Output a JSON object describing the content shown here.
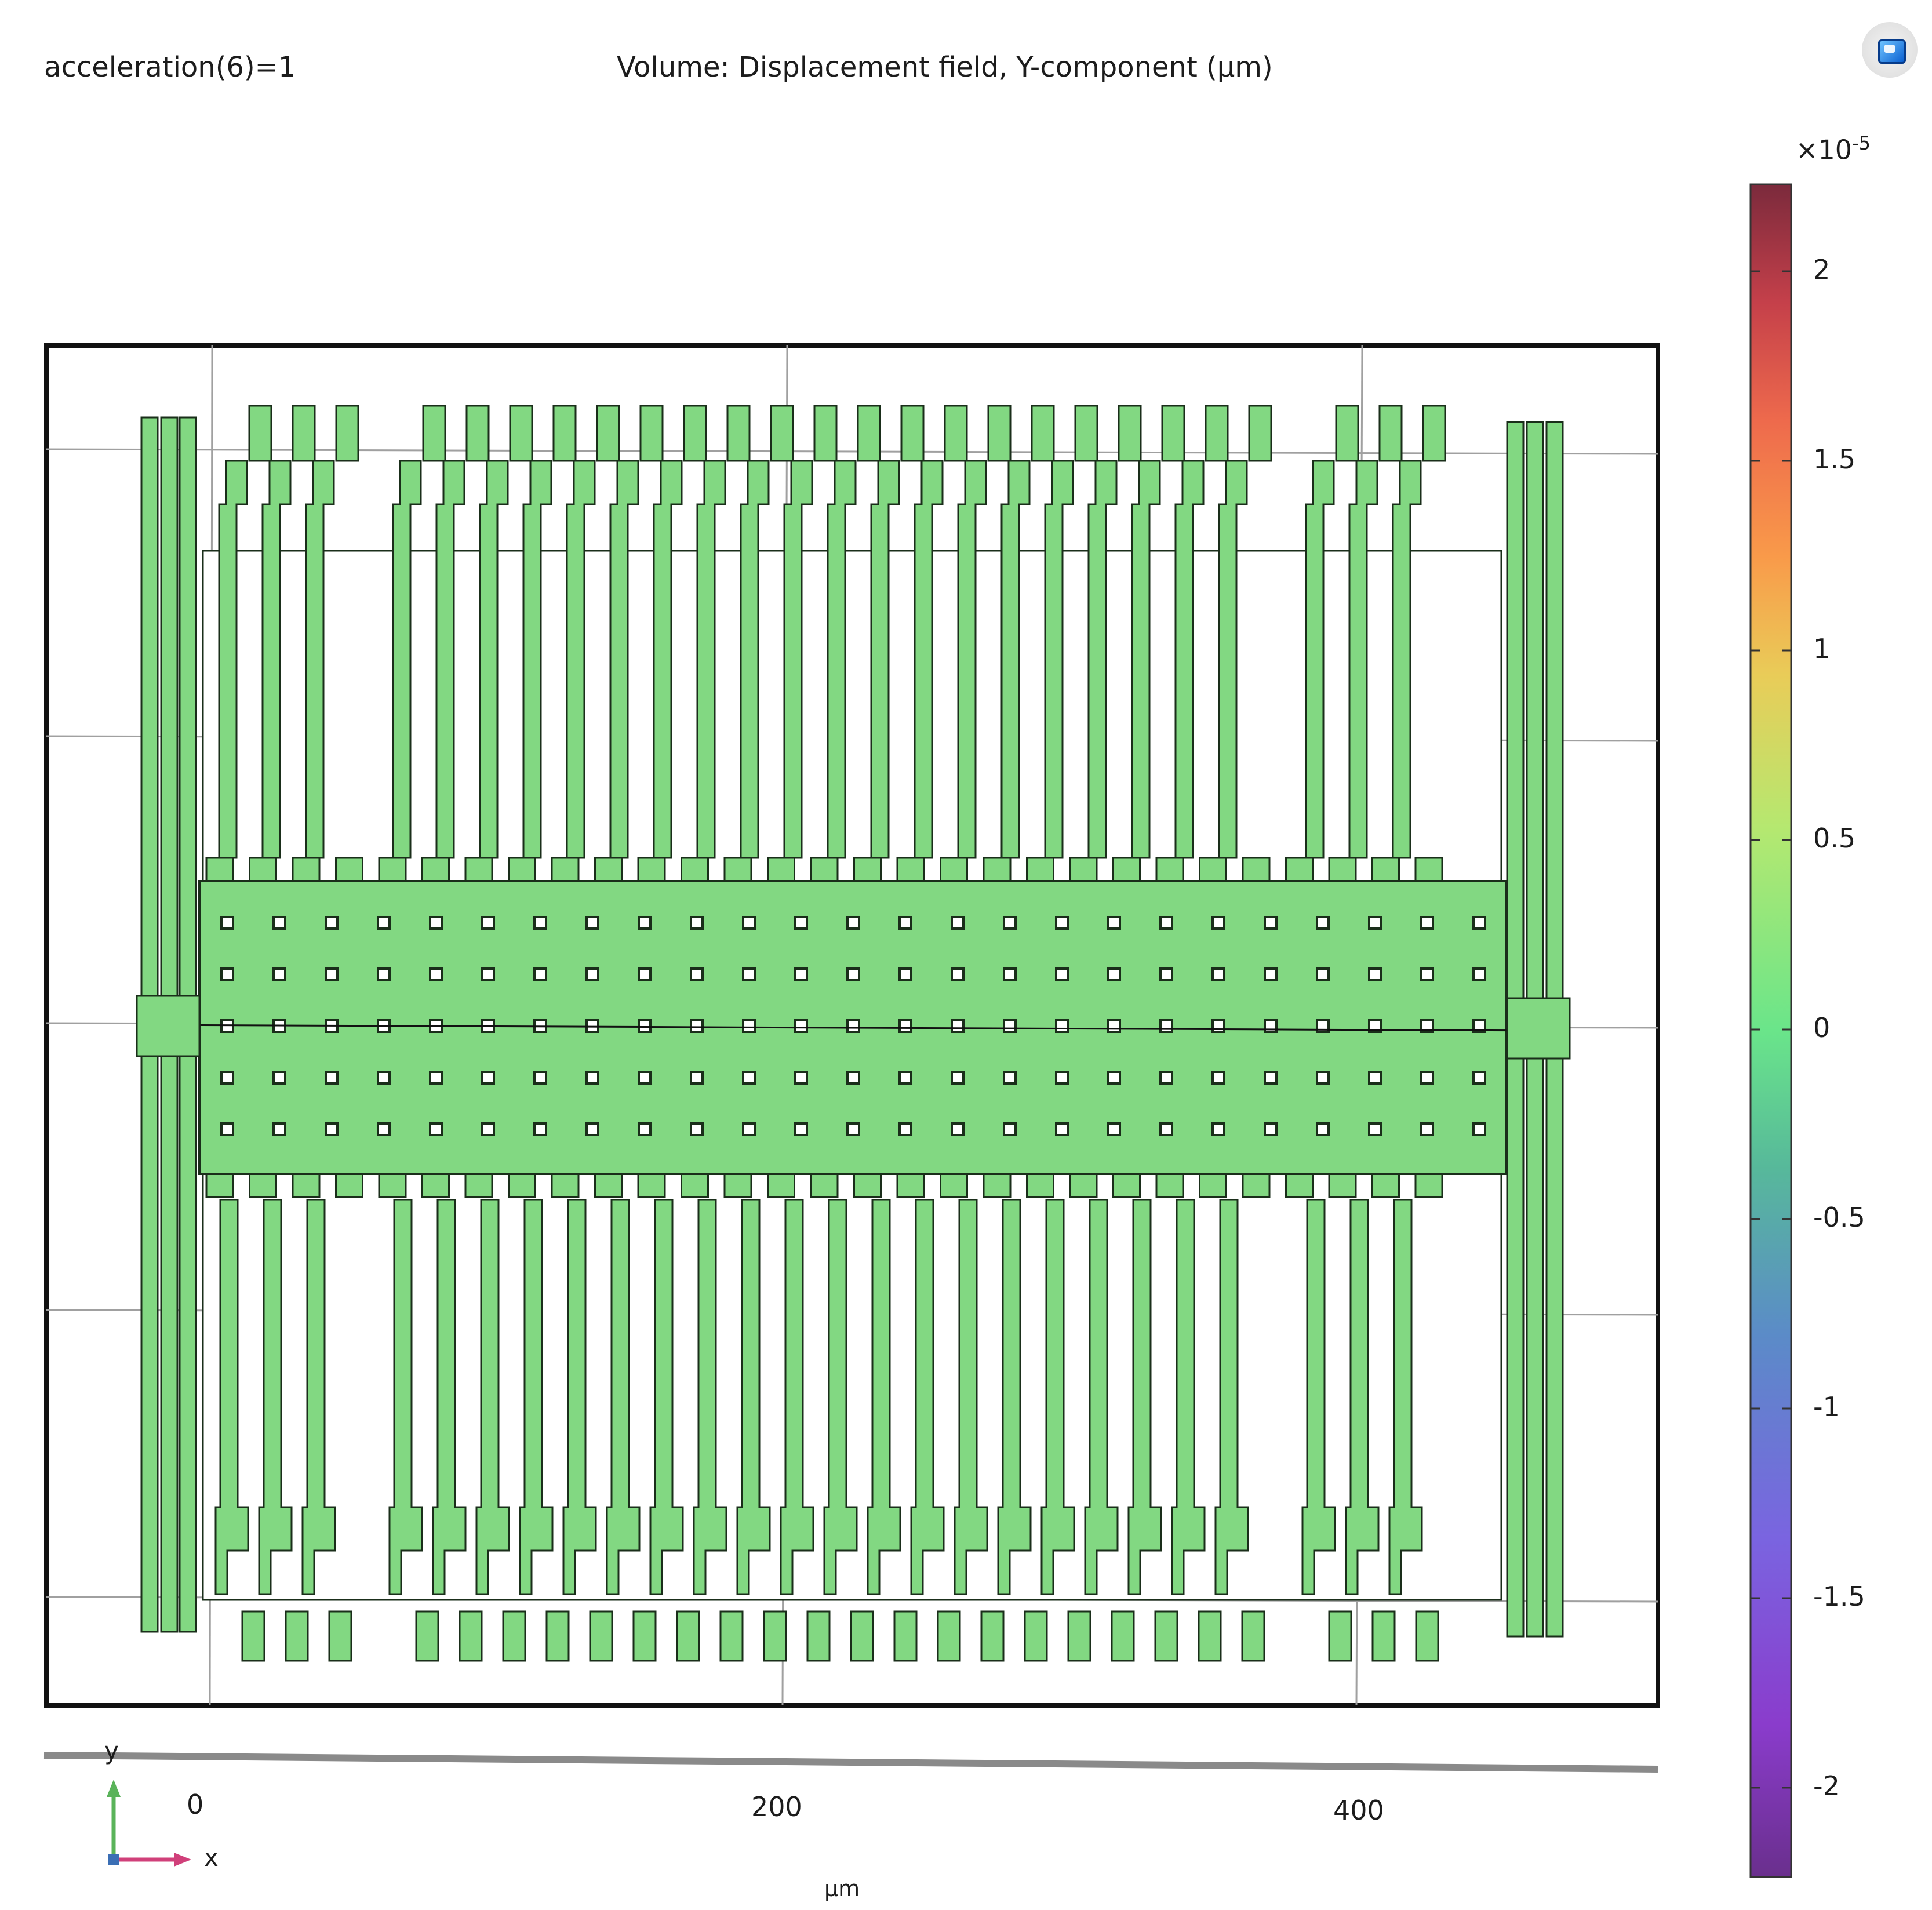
{
  "header": {
    "parameter_label": "acceleration(6)=1",
    "plot_title": "Volume:  Displacement field,  Y-component (µm)"
  },
  "toolbar": {
    "icon": "comsol-logo-icon"
  },
  "axis": {
    "x_ticks": [
      "0",
      "200",
      "400"
    ],
    "unit": "µm"
  },
  "triad": {
    "y_label": "y",
    "x_label": "x"
  },
  "colorbar": {
    "scale_base": "×10",
    "scale_exponent": "-5",
    "ticks": [
      "2",
      "1.5",
      "1",
      "0.5",
      "0",
      "-0.5",
      "-1",
      "-1.5",
      "-2"
    ],
    "colors": [
      "#7b2a3c",
      "#c5404a",
      "#ee6a4c",
      "#f99a4a",
      "#e9cc58",
      "#b5e870",
      "#6ae58a",
      "#57b99a",
      "#5b8bc8",
      "#7a64e0",
      "#8a3ccc",
      "#6a2f8d"
    ]
  },
  "model": {
    "fill_color": "#82d882",
    "edge_color": "#1a2e1a"
  }
}
